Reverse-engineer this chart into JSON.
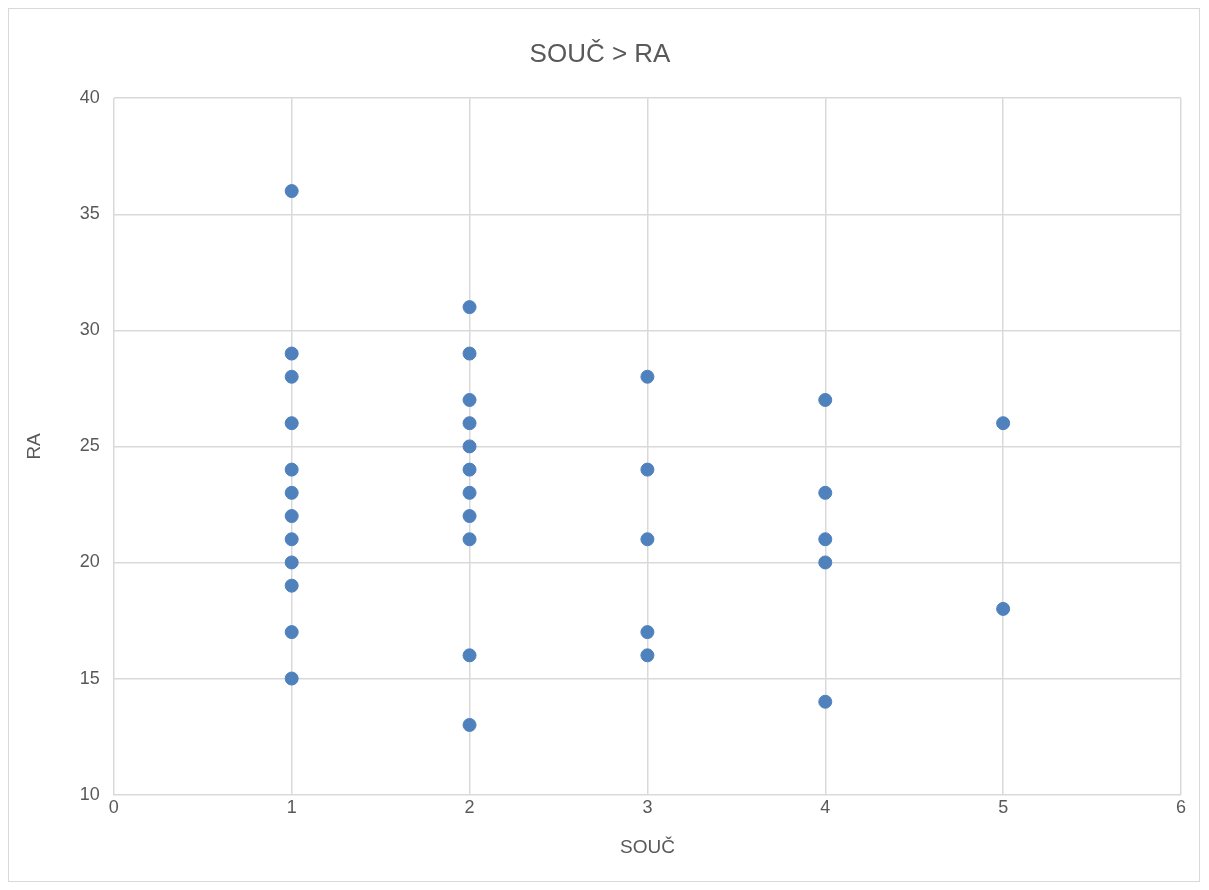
{
  "chart_data": {
    "type": "scatter",
    "title": "SOUČ > RA",
    "xlabel": "SOUČ",
    "ylabel": "RA",
    "xlim": [
      0,
      6
    ],
    "xticks": [
      0,
      1,
      2,
      3,
      4,
      5,
      6
    ],
    "ylim": [
      10,
      40
    ],
    "yticks": [
      10,
      15,
      20,
      25,
      30,
      35,
      40
    ],
    "grid": true,
    "legend": false,
    "marker": "circle",
    "series": [
      {
        "color": "#4f81bd",
        "x": [
          1,
          1,
          1,
          1,
          1,
          1,
          1,
          1,
          1,
          1,
          1,
          1,
          2,
          2,
          2,
          2,
          2,
          2,
          2,
          2,
          2,
          2,
          2,
          3,
          3,
          3,
          3,
          3,
          4,
          4,
          4,
          4,
          4,
          5,
          5
        ],
        "values": [
          36,
          29,
          28,
          26,
          24,
          23,
          22,
          21,
          20,
          19,
          17,
          15,
          31,
          29,
          27,
          26,
          25,
          24,
          23,
          22,
          21,
          16,
          13,
          28,
          24,
          21,
          17,
          16,
          27,
          23,
          21,
          20,
          14,
          26,
          18
        ]
      }
    ]
  }
}
